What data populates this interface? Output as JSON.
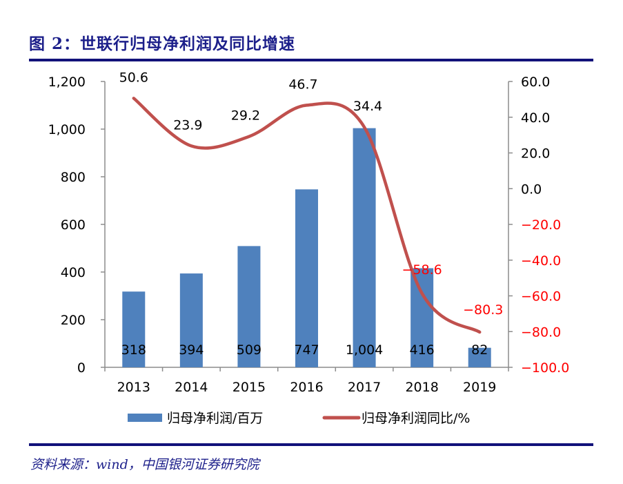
{
  "title": "图 2：世联行归母净利润及同比增速",
  "source": "资料来源：wind，中国银河证券研究院",
  "colors": {
    "bar": "#4f81bd",
    "line": "#c0504d",
    "negative_label": "#ff0000",
    "rule": "#12127a"
  },
  "chart_data": {
    "type": "bar+line",
    "categories": [
      "2013",
      "2014",
      "2015",
      "2016",
      "2017",
      "2018",
      "2019"
    ],
    "series": [
      {
        "name": "归母净利润/百万",
        "type": "bar",
        "axis": "left",
        "values": [
          318,
          394,
          509,
          747,
          1004,
          416,
          82
        ],
        "labels": [
          "318",
          "394",
          "509",
          "747",
          "1,004",
          "416",
          "82"
        ]
      },
      {
        "name": "归母净利润同比/%",
        "type": "line",
        "axis": "right",
        "values": [
          50.6,
          23.9,
          29.2,
          46.7,
          34.4,
          -58.6,
          -80.3
        ],
        "labels": [
          "50.6",
          "23.9",
          "29.2",
          "46.7",
          "34.4",
          "-58.6",
          "-80.3"
        ]
      }
    ],
    "left_axis": {
      "ylim": [
        0,
        1200
      ],
      "ticks": [
        "0",
        "200",
        "400",
        "600",
        "800",
        "1,000",
        "1,200"
      ]
    },
    "right_axis": {
      "ylim": [
        -100,
        60
      ],
      "ticks": [
        "-100.0",
        "-80.0",
        "-60.0",
        "-40.0",
        "-20.0",
        "0.0",
        "20.0",
        "40.0",
        "60.0"
      ]
    },
    "grid": false,
    "legend": "bottom"
  }
}
